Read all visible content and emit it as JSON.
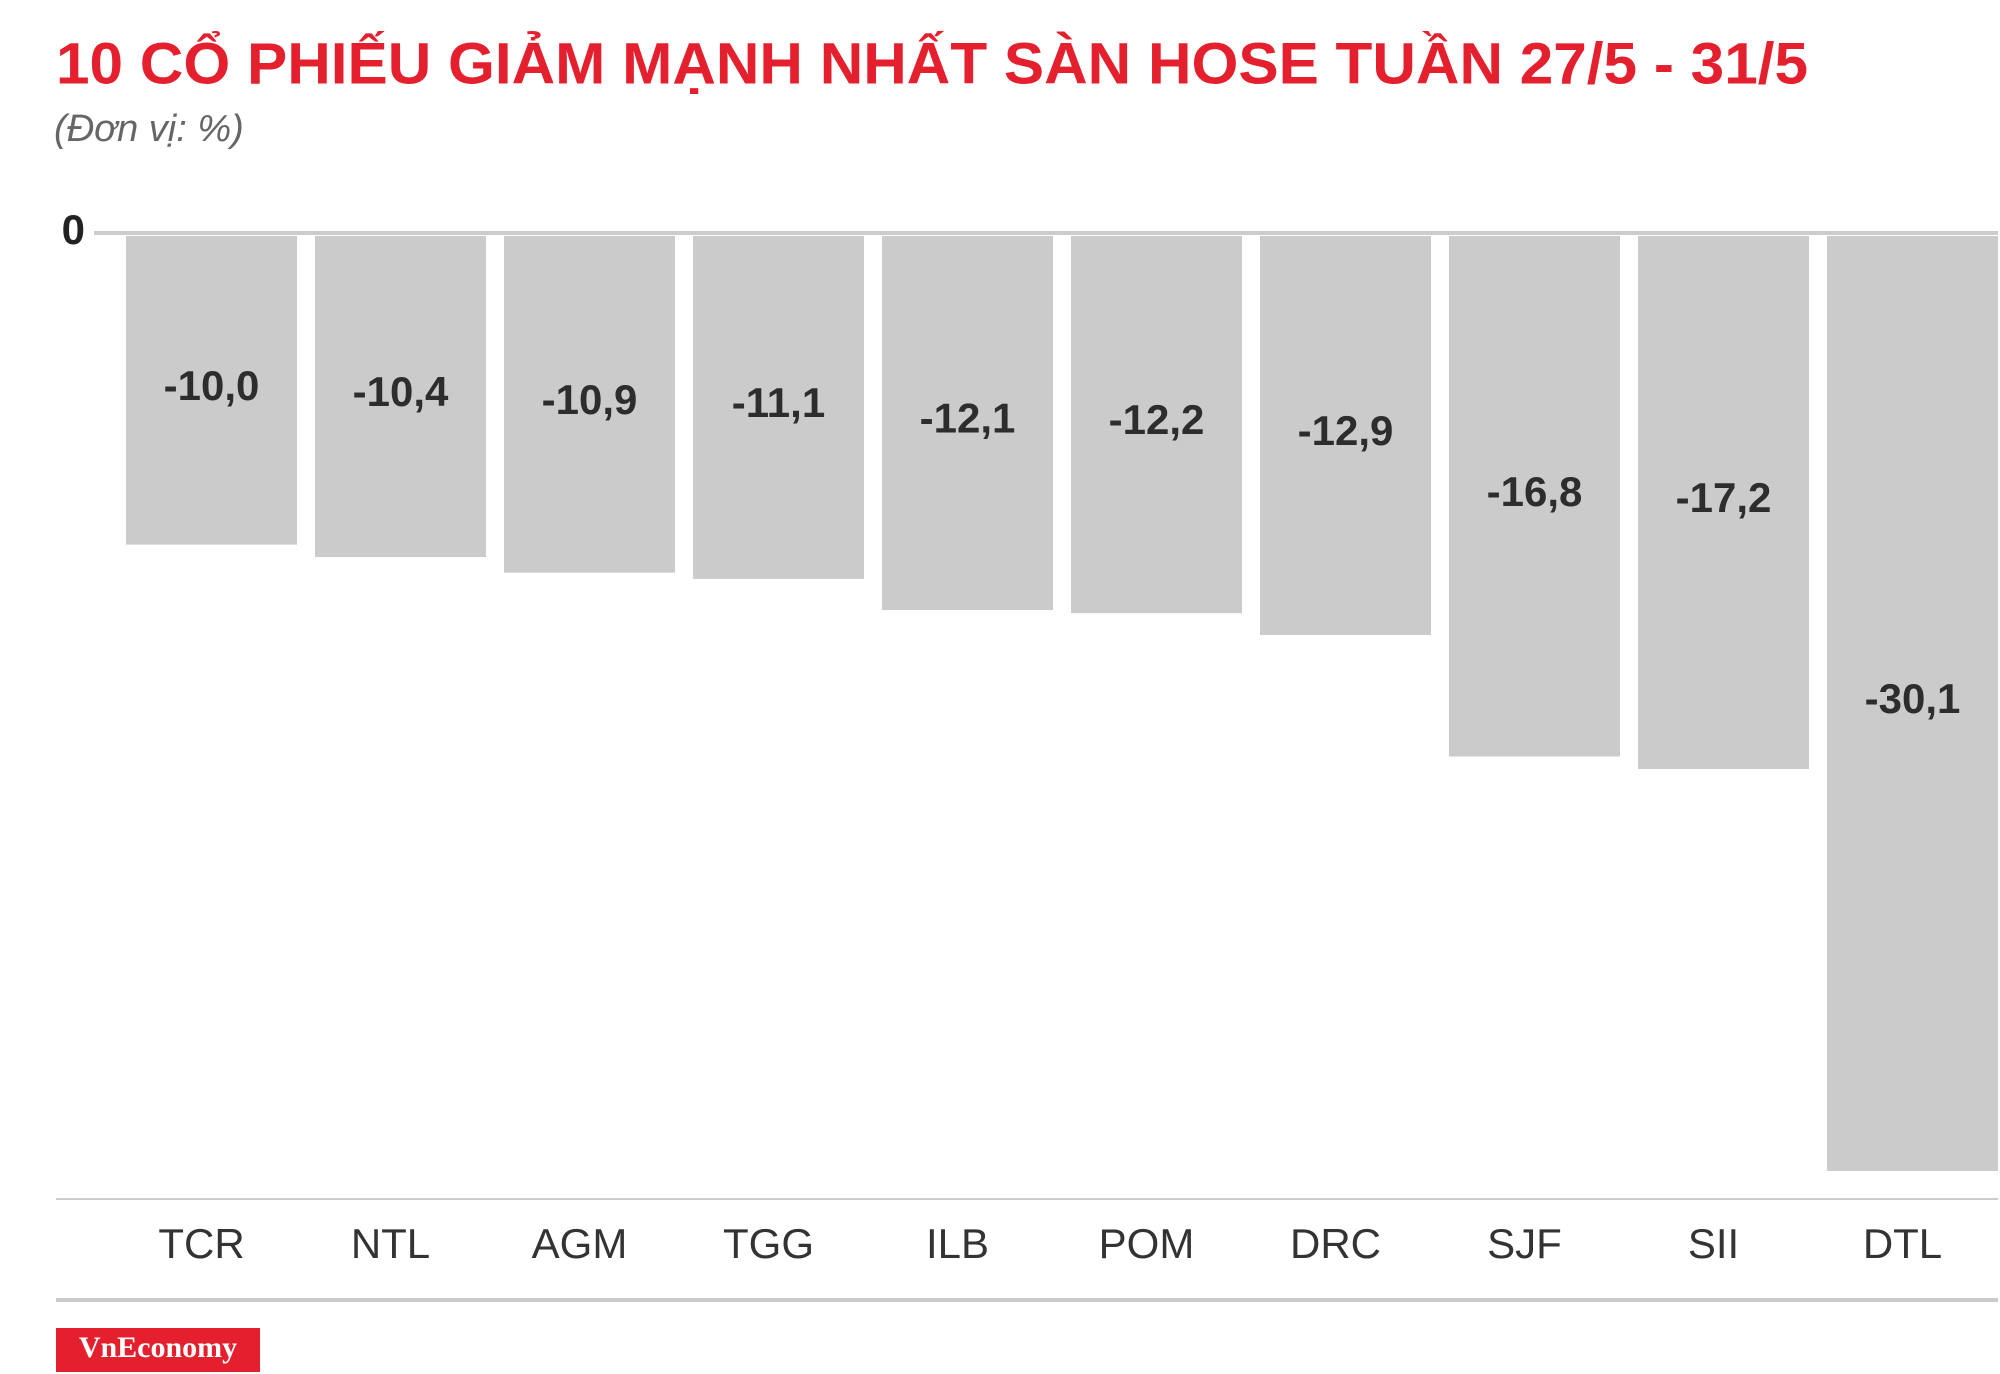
{
  "chart_data": {
    "type": "bar",
    "title": "10 CỔ PHIẾU GIẢM MẠNH NHẤT SÀN HOSE TUẦN 27/5 - 31/5",
    "subtitle": "(Đơn vị: %)",
    "categories": [
      "TCR",
      "NTL",
      "AGM",
      "TGG",
      "ILB",
      "POM",
      "DRC",
      "SJF",
      "SII",
      "DTL"
    ],
    "values": [
      -10.0,
      -10.4,
      -10.9,
      -11.1,
      -12.1,
      -12.2,
      -12.9,
      -16.8,
      -17.2,
      -30.1
    ],
    "value_labels": [
      "-10,0",
      "-10,4",
      "-10,9",
      "-11,1",
      "-12,1",
      "-12,2",
      "-12,9",
      "-16,8",
      "-17,2",
      "-30,1"
    ],
    "color": "#cccbcc",
    "ylim": [
      -31,
      0
    ],
    "yticks": [
      0
    ],
    "grid": false,
    "source": "VnEconomy"
  }
}
